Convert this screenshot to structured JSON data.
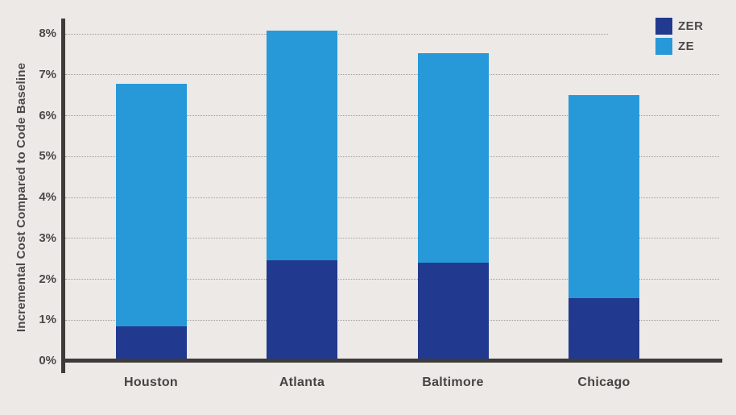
{
  "chart_data": {
    "type": "bar",
    "stacked": true,
    "title": "",
    "xlabel": "",
    "ylabel": "Incremental Cost Compared to Code Baseline",
    "categories": [
      "Houston",
      "Atlanta",
      "Baltimore",
      "Chicago"
    ],
    "series": [
      {
        "name": "ZER",
        "color": "#213a8f",
        "values": [
          0.85,
          2.47,
          2.4,
          1.53
        ]
      },
      {
        "name": "ZE",
        "color": "#2799d9",
        "values": [
          5.93,
          5.6,
          5.13,
          4.97
        ]
      }
    ],
    "stack_totals": [
      6.78,
      8.07,
      7.53,
      6.5
    ],
    "y_ticks": [
      "0%",
      "1%",
      "2%",
      "3%",
      "4%",
      "5%",
      "6%",
      "7%",
      "8%"
    ],
    "ylim": [
      0,
      8.4
    ],
    "grid": "horizontal-dotted",
    "legend_position": "top-right",
    "colors": {
      "background": "#ece9e7",
      "axis": "#3d3c3b",
      "gridline": "#a19e9b",
      "text": "#4b4a49"
    }
  }
}
